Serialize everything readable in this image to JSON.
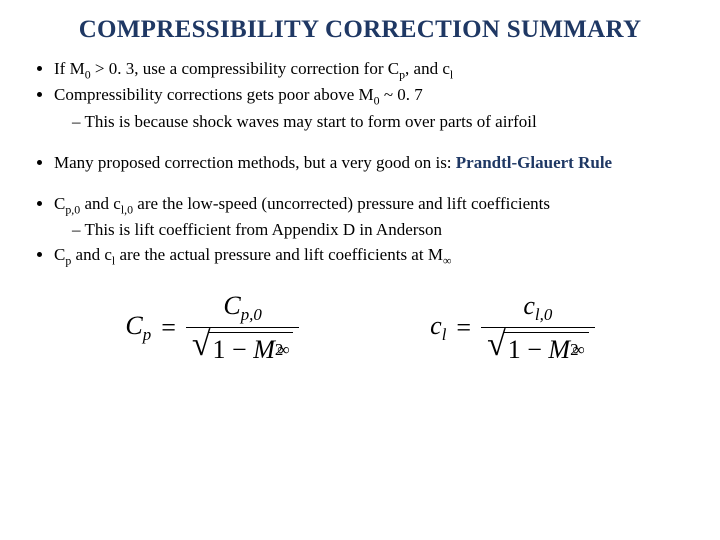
{
  "title": "COMPRESSIBILITY CORRECTION SUMMARY",
  "colors": {
    "title_color": "#1f3864",
    "accent_color": "#1f3864",
    "text_color": "#000000",
    "background": "#ffffff"
  },
  "typography": {
    "title_fontsize": 25,
    "body_fontsize": 17,
    "equation_fontsize": 26,
    "font_family": "Times New Roman"
  },
  "bullets": {
    "b1_pre": "If M",
    "b1_sub": "0",
    "b1_mid": " > 0. 3, use a compressibility correction for C",
    "b1_sub2": "p",
    "b1_mid2": ", and c",
    "b1_sub3": "l",
    "b2_pre": "Compressibility corrections gets poor above M",
    "b2_sub": "0",
    "b2_post": " ~ 0. 7",
    "b2_sub1": "This is because shock waves may start to form over parts of airfoil",
    "b3_pre": "Many proposed correction methods, but a very good on is: ",
    "b3_rule": "Prandtl-Glauert Rule",
    "b4_pre": "C",
    "b4_s1": "p,0",
    "b4_mid": " and c",
    "b4_s2": "l,0",
    "b4_post": " are the low-speed (uncorrected) pressure and lift coefficients",
    "b4_sub1": "This is lift coefficient from Appendix D in Anderson",
    "b5_pre": "C",
    "b5_s1": "p",
    "b5_mid": " and c",
    "b5_s2": "l",
    "b5_mid2": " are the actual pressure and lift coefficients at M",
    "b5_s3": "∞"
  },
  "equations": {
    "eq1": {
      "lhs_base": "C",
      "lhs_sub": "p",
      "equals": "=",
      "num_base": "C",
      "num_sub": "p,0",
      "one": "1",
      "minus": "−",
      "Mbase": "M",
      "Msup": "2",
      "Msub": "∞"
    },
    "eq2": {
      "lhs_base": "c",
      "lhs_sub": "l",
      "equals": "=",
      "num_base": "c",
      "num_sub": "l,0",
      "one": "1",
      "minus": "−",
      "Mbase": "M",
      "Msup": "2",
      "Msub": "∞"
    }
  }
}
